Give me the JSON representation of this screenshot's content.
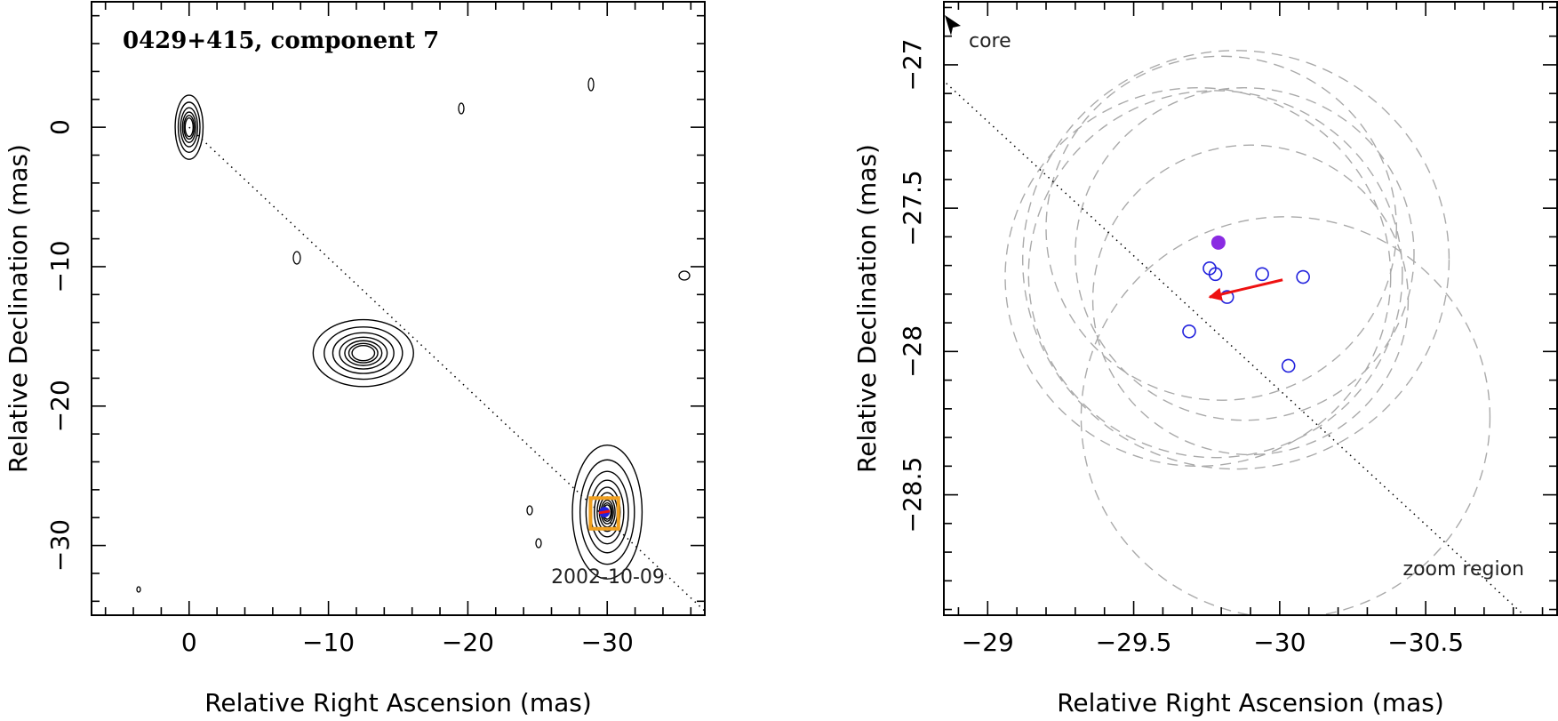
{
  "colors": {
    "contour": "#000000",
    "highlight_box": "#f0a020",
    "filled_marker": "#8a2be2",
    "open_marker": "#2222dd",
    "arrow": "#ee1111",
    "circle": "#aaaaaa"
  },
  "chart_data": [
    {
      "type": "contour",
      "title": "0429+415, component 7",
      "xlabel": "Relative Right Ascension (mas)",
      "ylabel": "Relative Declination (mas)",
      "xlim": [
        7,
        -37
      ],
      "ylim": [
        -35,
        9
      ],
      "xticks": [
        0,
        -10,
        -20,
        -30
      ],
      "xtick_labels": [
        "0",
        "−10",
        "−20",
        "−30"
      ],
      "yticks": [
        0,
        -10,
        -20,
        -30
      ],
      "ytick_labels": [
        "0",
        "−10",
        "−20",
        "−30"
      ],
      "epoch_label": "2002-10-09",
      "jet_axis": {
        "from": [
          0,
          0
        ],
        "to": [
          -37,
          -34.7
        ]
      },
      "components": [
        {
          "name": "core",
          "x": 0.0,
          "y": 0.0,
          "sx": 1.0,
          "sy": 2.3,
          "levels": 6
        },
        {
          "name": "component-middle",
          "x": -12.5,
          "y": -16.2,
          "sx": 3.6,
          "sy": 2.4,
          "levels": 7
        },
        {
          "name": "component-7",
          "x": -30.0,
          "y": -27.6,
          "sx": 2.5,
          "sy": 4.8,
          "levels": 10
        }
      ],
      "zoom_box": {
        "x": [
          -28.8,
          -30.8
        ],
        "y": [
          -26.6,
          -28.8
        ]
      },
      "marker": {
        "x": -29.8,
        "y": -27.6
      }
    },
    {
      "type": "scatter",
      "xlabel": "Relative Right Ascension (mas)",
      "ylabel": "Relative Declination (mas)",
      "xlim": [
        -28.85,
        -30.95
      ],
      "ylim": [
        -28.92,
        -26.78
      ],
      "xticks": [
        -29,
        -29.5,
        -30,
        -30.5
      ],
      "xtick_labels": [
        "−29",
        "−29.5",
        "−30",
        "−30.5"
      ],
      "yticks": [
        -27,
        -27.5,
        -28,
        -28.5
      ],
      "ytick_labels": [
        "−27",
        "−27.5",
        "−28",
        "−28.5"
      ],
      "annotations": {
        "core": "core",
        "zoom": "zoom region"
      },
      "mean_position": {
        "x": -29.79,
        "y": -27.62
      },
      "epoch_positions": [
        {
          "x": -29.76,
          "y": -27.71
        },
        {
          "x": -29.78,
          "y": -27.73
        },
        {
          "x": -29.94,
          "y": -27.73
        },
        {
          "x": -30.08,
          "y": -27.74
        },
        {
          "x": -29.82,
          "y": -27.81
        },
        {
          "x": -29.69,
          "y": -27.93
        },
        {
          "x": -30.03,
          "y": -28.05
        }
      ],
      "velocity_arrow": {
        "from": [
          -30.01,
          -27.75
        ],
        "to": [
          -29.76,
          -27.81
        ]
      },
      "beam_circles": [
        {
          "x": -29.8,
          "y": -27.57,
          "r": 0.6
        },
        {
          "x": -29.85,
          "y": -27.68,
          "r": 0.73
        },
        {
          "x": -29.78,
          "y": -27.73,
          "r": 0.64
        },
        {
          "x": -29.88,
          "y": -27.66,
          "r": 0.58
        },
        {
          "x": -29.72,
          "y": -27.74,
          "r": 0.66
        },
        {
          "x": -30.02,
          "y": -28.23,
          "r": 0.7
        },
        {
          "x": -29.9,
          "y": -27.82,
          "r": 0.54
        }
      ]
    }
  ]
}
